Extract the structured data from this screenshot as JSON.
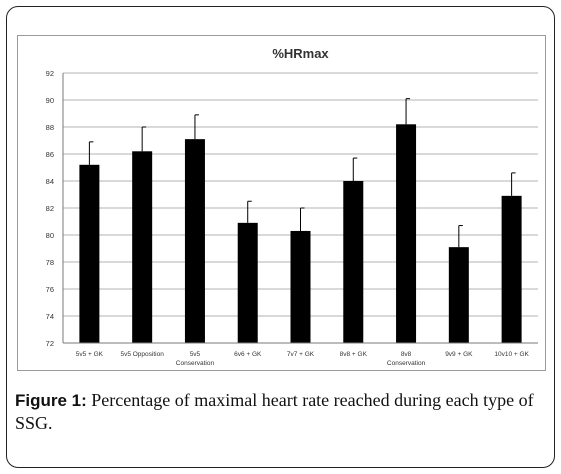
{
  "chart_data": {
    "type": "bar",
    "title": "%HRmax",
    "xlabel": "",
    "ylabel": "",
    "ylim": [
      72,
      92
    ],
    "yticks": [
      72,
      74,
      76,
      78,
      80,
      82,
      84,
      86,
      88,
      90,
      92
    ],
    "grid": true,
    "categories": [
      [
        "5v5 + GK"
      ],
      [
        "5v5 Opposition"
      ],
      [
        "5v5",
        "Conservation"
      ],
      [
        "6v6 + GK"
      ],
      [
        "7v7 + GK"
      ],
      [
        "8v8 + GK"
      ],
      [
        "8v8",
        "Conservation"
      ],
      [
        "9v9 + GK"
      ],
      [
        "10v10 + GK"
      ]
    ],
    "values": [
      85.2,
      86.2,
      87.1,
      80.9,
      80.3,
      84.0,
      88.2,
      79.1,
      82.9
    ],
    "errors": [
      1.7,
      1.8,
      1.8,
      1.6,
      1.7,
      1.7,
      1.9,
      1.6,
      1.7
    ],
    "bar_color": "#000000",
    "grid_color": "#9a9a9a"
  },
  "caption": {
    "label": "Figure 1:",
    "text": " Percentage of maximal heart rate reached during each type of SSG."
  }
}
